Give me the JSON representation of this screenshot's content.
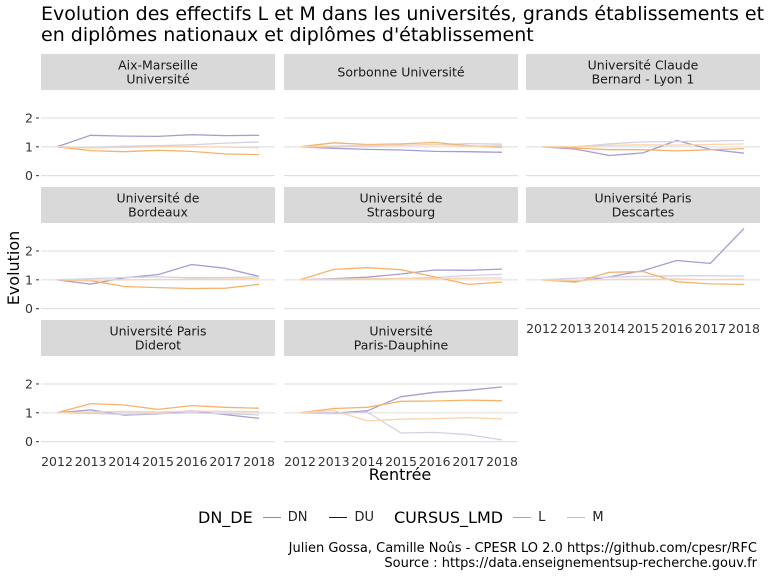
{
  "title_lines": [
    "Evolution des effectifs L et M dans les universités, grands établissements et",
    "en diplômes nationaux et diplômes d'établissement"
  ],
  "caption_lines": [
    "Julien Gossa, Camille Noûs - CPESR LO 2.0 https://github.com/cpesr/RFC",
    "Source : https://data.enseignementsup-recherche.gouv.fr"
  ],
  "legend": {
    "dn_de_title": "DN_DE",
    "dn_de_items": [
      {
        "label": "DN",
        "color": "#8e86b8"
      },
      {
        "label": "DU",
        "color": "#1a1a1a"
      }
    ],
    "cursus_title": "CURSUS_LMD",
    "cursus_items": [
      {
        "label": "L",
        "color": "#a79dd1"
      },
      {
        "label": "M",
        "color": "#f6b26b"
      }
    ]
  },
  "chart_data": {
    "type": "line",
    "xlabel": "Rentrée",
    "ylabel": "Evolution",
    "x": [
      2012,
      2013,
      2014,
      2015,
      2016,
      2017,
      2018
    ],
    "ylim": [
      -0.15,
      2.9
    ],
    "yticks": [
      0,
      1,
      2
    ],
    "grid": true,
    "legend_position": "bottom",
    "colors": {
      "L_DN": "#a79dd1",
      "L_DU": "#d4d0e6",
      "M_DN": "#f6b26b",
      "M_DU": "#f9d4ab"
    },
    "panels": [
      {
        "title": [
          "Aix-Marseille",
          "Université"
        ],
        "series": [
          {
            "key": "L_DN",
            "values": [
              1.0,
              1.4,
              1.37,
              1.36,
              1.42,
              1.39,
              1.4
            ]
          },
          {
            "key": "L_DU",
            "values": [
              1.0,
              0.97,
              1.02,
              1.04,
              1.07,
              1.13,
              1.17
            ]
          },
          {
            "key": "M_DN",
            "values": [
              1.0,
              0.87,
              0.83,
              0.88,
              0.84,
              0.75,
              0.73
            ]
          },
          {
            "key": "M_DU",
            "values": [
              1.0,
              0.96,
              0.98,
              1.0,
              1.01,
              0.99,
              0.97
            ]
          }
        ]
      },
      {
        "title": [
          "Sorbonne Université"
        ],
        "series": [
          {
            "key": "L_DN",
            "values": [
              1.0,
              0.95,
              0.91,
              0.89,
              0.84,
              0.83,
              0.81
            ]
          },
          {
            "key": "L_DU",
            "values": [
              1.0,
              1.0,
              1.03,
              1.06,
              1.07,
              1.11,
              1.09
            ]
          },
          {
            "key": "M_DN",
            "values": [
              1.0,
              1.14,
              1.08,
              1.1,
              1.15,
              1.04,
              0.98
            ]
          },
          {
            "key": "M_DU",
            "values": [
              1.0,
              1.03,
              1.05,
              1.05,
              1.08,
              1.02,
              1.04
            ]
          }
        ]
      },
      {
        "title": [
          "Université Claude",
          "Bernard - Lyon 1"
        ],
        "series": [
          {
            "key": "L_DN",
            "values": [
              1.0,
              0.92,
              0.7,
              0.79,
              1.22,
              0.91,
              0.78
            ]
          },
          {
            "key": "L_DU",
            "values": [
              1.0,
              1.0,
              1.1,
              1.17,
              1.18,
              1.2,
              1.22
            ]
          },
          {
            "key": "M_DN",
            "values": [
              1.0,
              0.96,
              0.9,
              0.9,
              0.86,
              0.9,
              0.94
            ]
          },
          {
            "key": "M_DU",
            "values": [
              1.0,
              1.01,
              1.05,
              1.07,
              1.06,
              1.08,
              1.1
            ]
          }
        ]
      },
      {
        "title": [
          "Université de",
          "Bordeaux"
        ],
        "series": [
          {
            "key": "L_DN",
            "values": [
              1.0,
              0.85,
              1.07,
              1.18,
              1.53,
              1.4,
              1.12
            ]
          },
          {
            "key": "L_DU",
            "values": [
              1.0,
              1.04,
              1.08,
              1.1,
              1.07,
              1.08,
              1.1
            ]
          },
          {
            "key": "M_DN",
            "values": [
              1.0,
              0.97,
              0.77,
              0.73,
              0.7,
              0.71,
              0.84
            ]
          },
          {
            "key": "M_DU",
            "values": [
              1.0,
              0.99,
              1.0,
              1.01,
              1.02,
              1.03,
              1.05
            ]
          }
        ]
      },
      {
        "title": [
          "Université de",
          "Strasbourg"
        ],
        "series": [
          {
            "key": "L_DN",
            "values": [
              1.0,
              1.04,
              1.09,
              1.2,
              1.34,
              1.33,
              1.37
            ]
          },
          {
            "key": "L_DU",
            "values": [
              1.0,
              1.0,
              1.02,
              1.05,
              1.08,
              1.15,
              1.19
            ]
          },
          {
            "key": "M_DN",
            "values": [
              1.0,
              1.36,
              1.42,
              1.35,
              1.1,
              0.84,
              0.92
            ]
          },
          {
            "key": "M_DU",
            "values": [
              1.0,
              1.02,
              1.04,
              1.05,
              1.04,
              1.06,
              1.07
            ]
          }
        ]
      },
      {
        "title": [
          "Université Paris",
          "Descartes"
        ],
        "series": [
          {
            "key": "L_DN",
            "values": [
              1.0,
              0.94,
              1.1,
              1.32,
              1.67,
              1.57,
              2.78
            ]
          },
          {
            "key": "L_DU",
            "values": [
              1.0,
              1.06,
              1.09,
              1.12,
              1.14,
              1.14,
              1.13
            ]
          },
          {
            "key": "M_DN",
            "values": [
              1.0,
              0.92,
              1.26,
              1.29,
              0.93,
              0.86,
              0.84
            ]
          },
          {
            "key": "M_DU",
            "values": [
              1.0,
              0.98,
              1.01,
              1.02,
              1.03,
              1.01,
              1.02
            ]
          }
        ]
      },
      {
        "title": [
          "Université Paris",
          "Diderot"
        ],
        "series": [
          {
            "key": "L_DN",
            "values": [
              1.0,
              1.1,
              0.92,
              0.96,
              1.07,
              0.94,
              0.81
            ]
          },
          {
            "key": "L_DU",
            "values": [
              1.0,
              0.98,
              0.95,
              0.97,
              1.0,
              0.97,
              0.93
            ]
          },
          {
            "key": "M_DN",
            "values": [
              1.0,
              1.32,
              1.27,
              1.12,
              1.25,
              1.19,
              1.16
            ]
          },
          {
            "key": "M_DU",
            "values": [
              1.0,
              1.03,
              1.05,
              1.03,
              1.06,
              1.05,
              1.04
            ]
          }
        ]
      },
      {
        "title": [
          "Université",
          "Paris-Dauphine"
        ],
        "series": [
          {
            "key": "L_DN",
            "values": [
              1.0,
              0.99,
              1.07,
              1.56,
              1.71,
              1.78,
              1.9
            ]
          },
          {
            "key": "L_DU",
            "values": [
              1.0,
              0.97,
              1.03,
              0.3,
              0.32,
              0.24,
              0.06
            ]
          },
          {
            "key": "M_DN",
            "values": [
              1.0,
              1.15,
              1.19,
              1.4,
              1.41,
              1.44,
              1.42
            ]
          },
          {
            "key": "M_DU",
            "values": [
              1.0,
              1.08,
              0.72,
              0.78,
              0.8,
              0.83,
              0.79
            ]
          }
        ]
      }
    ]
  }
}
